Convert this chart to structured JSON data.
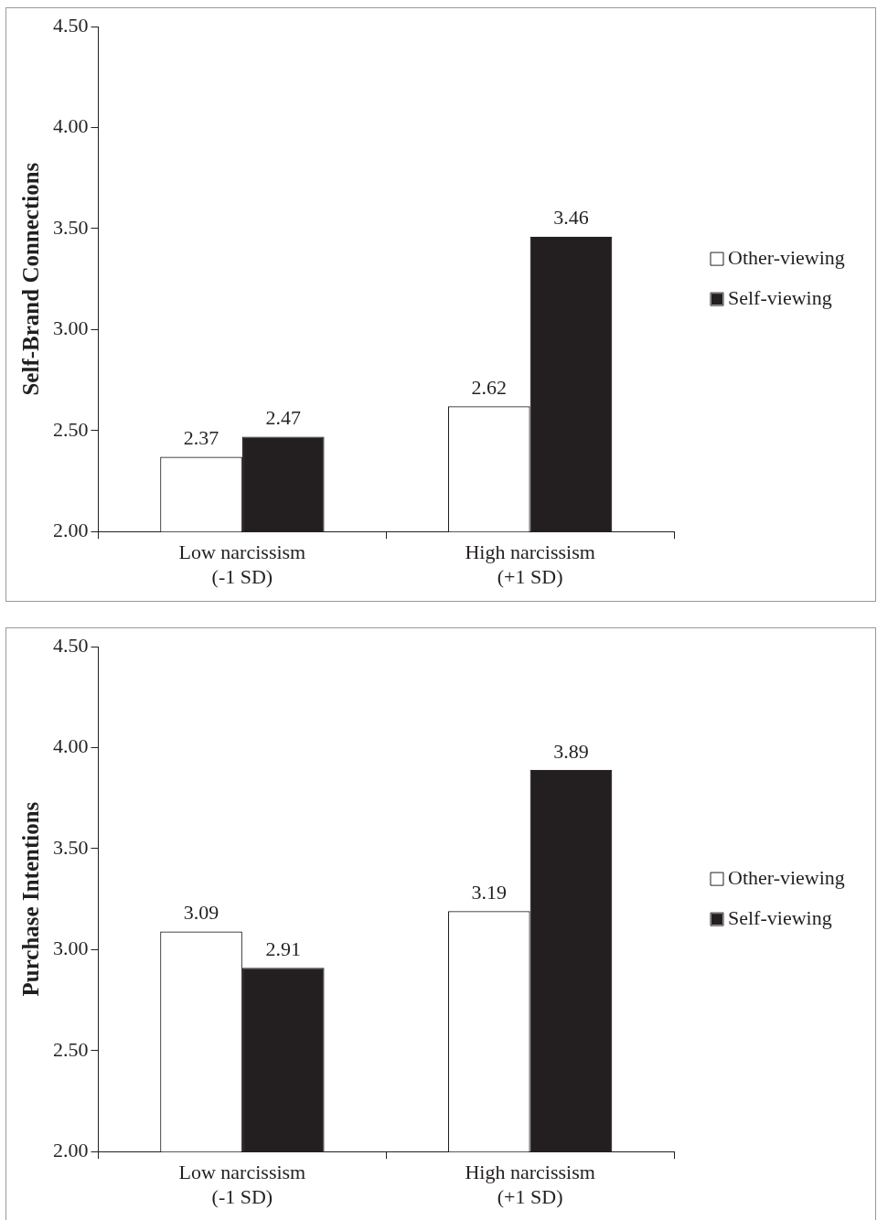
{
  "chart_data": [
    {
      "type": "bar",
      "ylabel": "Self-Brand Connections",
      "categories": [
        "Low narcissism\n(-1 SD)",
        "High narcissism\n(+1 SD)"
      ],
      "series": [
        {
          "name": "Other-viewing",
          "color": "#ffffff",
          "values": [
            2.37,
            2.62
          ]
        },
        {
          "name": "Self-viewing",
          "color": "#231f20",
          "values": [
            2.47,
            3.46
          ]
        }
      ],
      "ylim": [
        2,
        4.5
      ],
      "yticks": [
        {
          "value": 2,
          "label": "2.00"
        },
        {
          "value": 2.5,
          "label": "2.50"
        },
        {
          "value": 3,
          "label": "3.00"
        },
        {
          "value": 3.5,
          "label": "3.50"
        },
        {
          "value": 4,
          "label": "4.00"
        },
        {
          "value": 4.5,
          "label": "4.50"
        }
      ],
      "data_labels": true,
      "grid": false,
      "legend": "right"
    },
    {
      "type": "bar",
      "ylabel": "Purchase Intentions",
      "categories": [
        "Low narcissism\n(-1 SD)",
        "High narcissism\n(+1 SD)"
      ],
      "series": [
        {
          "name": "Other-viewing",
          "color": "#ffffff",
          "values": [
            3.09,
            3.19
          ]
        },
        {
          "name": "Self-viewing",
          "color": "#231f20",
          "values": [
            2.91,
            3.89
          ]
        }
      ],
      "ylim": [
        2,
        4.5
      ],
      "yticks": [
        {
          "value": 2,
          "label": "2.00"
        },
        {
          "value": 2.5,
          "label": "2.50"
        },
        {
          "value": 3,
          "label": "3.00"
        },
        {
          "value": 3.5,
          "label": "3.50"
        },
        {
          "value": 4,
          "label": "4.00"
        },
        {
          "value": 4.5,
          "label": "4.50"
        }
      ],
      "data_labels": true,
      "grid": false,
      "legend": "right"
    }
  ]
}
